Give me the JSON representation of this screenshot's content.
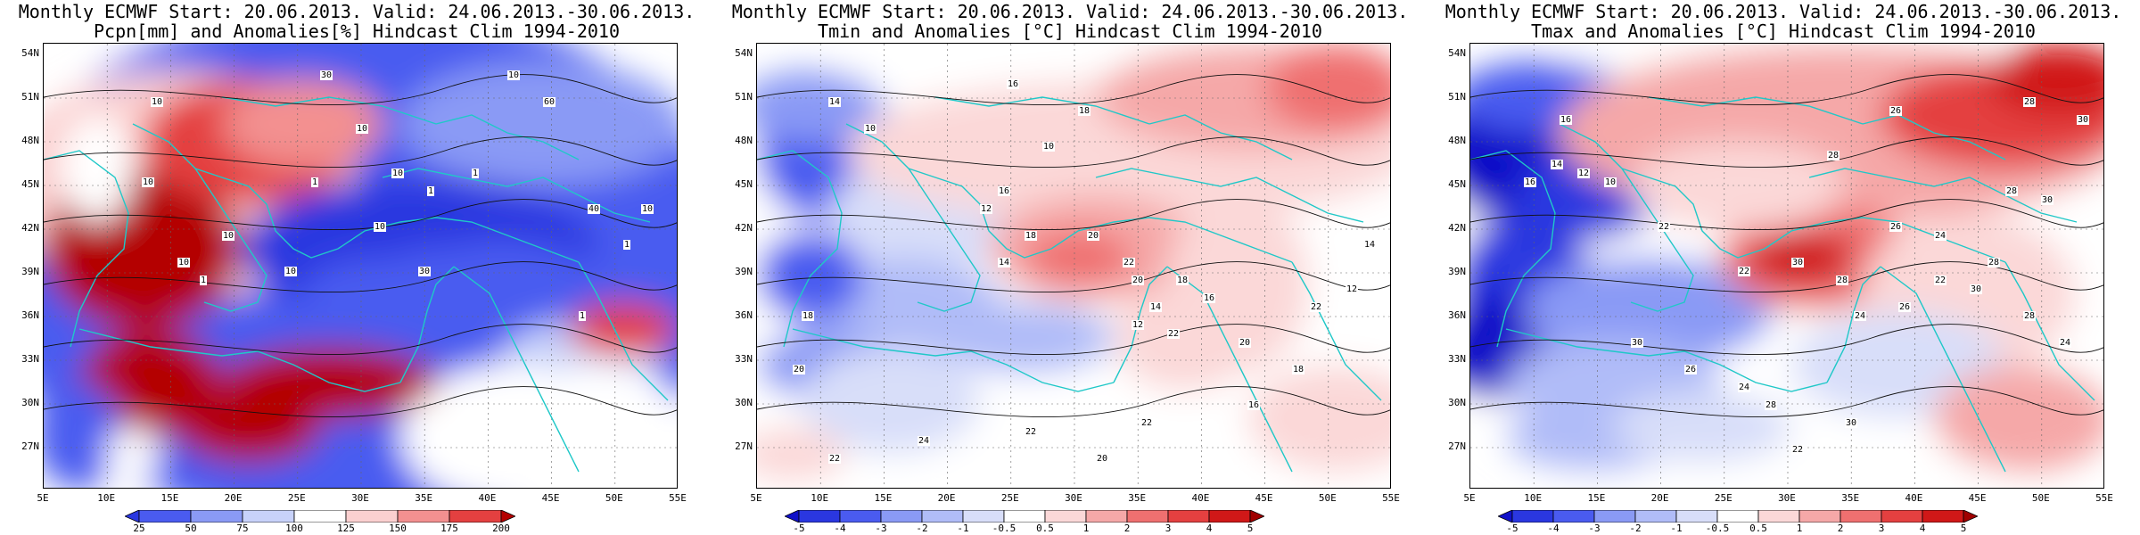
{
  "panels": [
    {
      "id": "pcpn",
      "title_line1": "Monthly ECMWF Start: 20.06.2013. Valid: 24.06.2013.-30.06.2013.",
      "title_line2": "Pcpn[mm] and Anomalies[%] Hindcast Clim 1994-2010",
      "colorbar_labels": [
        "25",
        "50",
        "75",
        "100",
        "125",
        "150",
        "175",
        "200"
      ],
      "colorbar_colors": [
        "#2a37e0",
        "#4a5bf0",
        "#8a9af5",
        "#c8d2fa",
        "#ffffff",
        "#fbd0d0",
        "#f39090",
        "#e44040",
        "#b40000"
      ],
      "contour_labels": [
        "10",
        "30",
        "10",
        "60",
        "10",
        "40",
        "10",
        "10",
        "1",
        "10",
        "30",
        "10",
        "1",
        "1",
        "1",
        "10",
        "1",
        "10",
        "10",
        "1"
      ]
    },
    {
      "id": "tmin",
      "title_line1": "Monthly ECMWF Start: 20.06.2013. Valid: 24.06.2013.-30.06.2013.",
      "title_line2": "Tmin and Anomalies [°C] Hindcast Clim 1994-2010",
      "colorbar_labels": [
        "-5",
        "-4",
        "-3",
        "-2",
        "-1",
        "-0.5",
        "0.5",
        "1",
        "2",
        "3",
        "4",
        "5"
      ],
      "colorbar_colors": [
        "#1010c8",
        "#2a37e0",
        "#4a5bf0",
        "#8a9af5",
        "#b0bcf8",
        "#d8def9",
        "#ffffff",
        "#fbd8d8",
        "#f5a8a8",
        "#ef7070",
        "#e44040",
        "#d01818",
        "#a00000"
      ],
      "contour_labels": [
        "14",
        "16",
        "10",
        "18",
        "10",
        "16",
        "12",
        "18",
        "14",
        "20",
        "22",
        "20",
        "18",
        "16",
        "14",
        "12",
        "22",
        "20",
        "18",
        "16",
        "22",
        "20",
        "22",
        "24",
        "22",
        "20",
        "18",
        "22",
        "12",
        "14"
      ]
    },
    {
      "id": "tmax",
      "title_line1": "Monthly ECMWF Start: 20.06.2013. Valid: 24.06.2013.-30.06.2013.",
      "title_line2": "Tmax and Anomalies [°C] Hindcast Clim 1994-2010",
      "colorbar_labels": [
        "-5",
        "-4",
        "-3",
        "-2",
        "-1",
        "-0.5",
        "0.5",
        "1",
        "2",
        "3",
        "4",
        "5"
      ],
      "colorbar_colors": [
        "#1010c8",
        "#2a37e0",
        "#4a5bf0",
        "#8a9af5",
        "#b0bcf8",
        "#d8def9",
        "#ffffff",
        "#fbd8d8",
        "#f5a8a8",
        "#ef7070",
        "#e44040",
        "#d01818",
        "#a00000"
      ],
      "contour_labels": [
        "28",
        "26",
        "16",
        "30",
        "28",
        "14",
        "12",
        "16",
        "10",
        "28",
        "30",
        "22",
        "26",
        "24",
        "28",
        "22",
        "30",
        "28",
        "24",
        "26",
        "22",
        "30",
        "28",
        "24",
        "30",
        "26",
        "24",
        "28",
        "22",
        "30"
      ]
    }
  ],
  "lat_labels": [
    "54N",
    "51N",
    "48N",
    "45N",
    "42N",
    "39N",
    "36N",
    "33N",
    "30N",
    "27N"
  ],
  "lon_labels": [
    "5E",
    "10E",
    "15E",
    "20E",
    "25E",
    "30E",
    "35E",
    "40E",
    "45E",
    "50E",
    "55E"
  ]
}
